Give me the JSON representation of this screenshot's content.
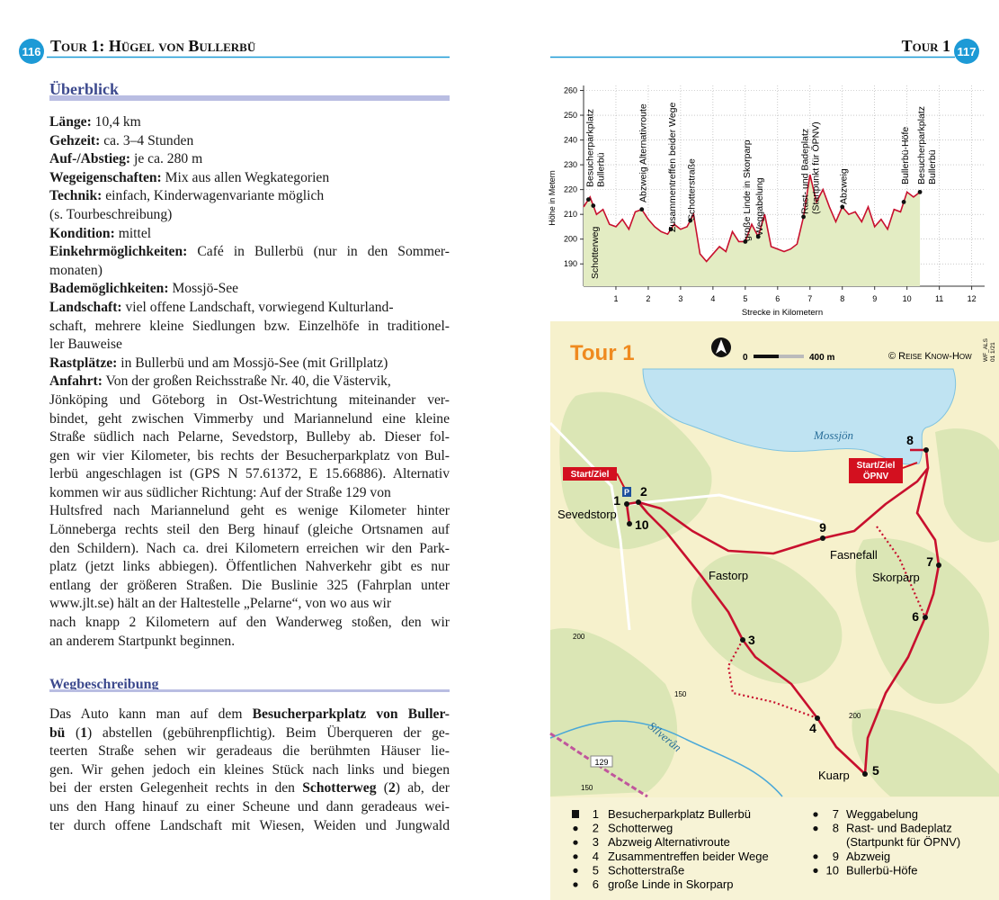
{
  "left": {
    "page_number": "116",
    "header": "Tour 1: Hügel von Bullerbü",
    "overview": {
      "heading": "Überblick",
      "lines": [
        [
          {
            "text": "Länge:",
            "bold": true
          },
          {
            "text": " 10,4 km"
          }
        ],
        [
          {
            "text": "Gehzeit:",
            "bold": true
          },
          {
            "text": " ca. 3–4 Stunden"
          }
        ],
        [
          {
            "text": "Auf-/Abstieg:",
            "bold": true
          },
          {
            "text": " je ca. 280 m"
          }
        ],
        [
          {
            "text": "Wegeigenschaften:",
            "bold": true
          },
          {
            "text": " Mix aus allen Wegkategorien"
          }
        ],
        [
          {
            "text": "Technik:",
            "bold": true
          },
          {
            "text": " einfach, Kinderwagenvariante möglich"
          }
        ],
        [
          {
            "text": "(s. Tourbeschreibung)"
          }
        ],
        [
          {
            "text": "Kondition:",
            "bold": true
          },
          {
            "text": " mittel"
          }
        ],
        [
          {
            "text": "Einkehrmöglichkeiten:",
            "bold": true
          },
          {
            "text": " Café in Bullerbü (nur in den Sommer-"
          }
        ],
        [
          {
            "text": "monaten)"
          }
        ],
        [
          {
            "text": "Bademöglichkeiten:",
            "bold": true
          },
          {
            "text": " Mossjö-See"
          }
        ],
        [
          {
            "text": "Landschaft:",
            "bold": true
          },
          {
            "text": " viel offene Landschaft, vorwiegend Kulturland-"
          }
        ],
        [
          {
            "text": "schaft, mehrere kleine Siedlungen bzw. Einzelhöfe in traditionel-"
          }
        ],
        [
          {
            "text": "ler Bauweise"
          }
        ],
        [
          {
            "text": "Rastplätze:",
            "bold": true
          },
          {
            "text": " in Bullerbü und am Mossjö-See (mit Grillplatz)"
          }
        ],
        [
          {
            "text": "Anfahrt:",
            "bold": true
          },
          {
            "text": " Von der großen Reichsstraße Nr. 40, die Västervik,"
          }
        ],
        [
          {
            "text": "Jönköping und Göteborg in Ost-Westrichtung miteinander ver-"
          }
        ],
        [
          {
            "text": "bindet, geht zwischen Vimmerby und Mariannelund eine kleine"
          }
        ],
        [
          {
            "text": "Straße südlich nach Pelarne, Sevedstorp, Bulleby ab. Dieser fol-"
          }
        ],
        [
          {
            "text": "gen wir vier Kilometer, bis rechts der Besucherparkplatz von Bul-"
          }
        ],
        [
          {
            "text": "lerbü angeschlagen ist (GPS N 57.61372, E 15.66886). Alternativ"
          }
        ],
        [
          {
            "text": "kommen wir aus südlicher Richtung: Auf der Straße 129 von"
          }
        ],
        [
          {
            "text": "Hultsfred nach Mariannelund geht es wenige Kilometer hinter"
          }
        ],
        [
          {
            "text": "Lönneberga rechts steil den Berg hinauf (gleiche Ortsnamen auf"
          }
        ],
        [
          {
            "text": "den Schildern). Nach ca. drei Kilometern erreichen wir den Park-"
          }
        ],
        [
          {
            "text": "platz (jetzt links abbiegen). Öffentlichen Nahverkehr gibt es nur"
          }
        ],
        [
          {
            "text": "entlang der größeren Straßen. Die Buslinie 325 (Fahrplan unter"
          }
        ],
        [
          {
            "text": "www.jlt.se) hält an der Haltestelle „Pelarne“, von wo aus wir"
          }
        ],
        [
          {
            "text": "nach knapp 2 Kilometern auf den Wanderweg stoßen, den wir"
          }
        ],
        [
          {
            "text": "an anderem Startpunkt beginnen."
          }
        ]
      ]
    },
    "route": {
      "heading": "Wegbeschreibung",
      "lines": [
        [
          {
            "text": "Das Auto kann man auf dem "
          },
          {
            "text": "Besucherparkplatz von Buller-",
            "bold": true
          }
        ],
        [
          {
            "text": "bü",
            "bold": true
          },
          {
            "text": " ("
          },
          {
            "text": "1",
            "bold": true
          },
          {
            "text": ") abstellen (gebührenpflichtig). Beim Überqueren der ge-"
          }
        ],
        [
          {
            "text": "teerten Straße sehen wir geradeaus die berühmten Häuser lie-"
          }
        ],
        [
          {
            "text": "gen. Wir gehen jedoch ein kleines Stück nach links und biegen"
          }
        ],
        [
          {
            "text": "bei der ersten Gelegenheit rechts in den "
          },
          {
            "text": "Schotterweg",
            "bold": true
          },
          {
            "text": " ("
          },
          {
            "text": "2",
            "bold": true
          },
          {
            "text": ") ab, der"
          }
        ],
        [
          {
            "text": "uns den Hang hinauf zu einer Scheune und dann geradeaus wei-"
          }
        ],
        [
          {
            "text": "ter durch offene Landschaft mit Wiesen, Weiden und Jungwald"
          }
        ]
      ]
    }
  },
  "right": {
    "header": "Tour 1",
    "page_number": "117"
  },
  "chart_data": {
    "type": "area",
    "ylabel": "Höhe in Metern",
    "xlabel": "Strecke in Kilometern",
    "color": "#c8102e",
    "fill_color": "#e3ecc3",
    "grid": true,
    "xlim": [
      0,
      12.4
    ],
    "ylim": [
      181,
      262
    ],
    "xticks": [
      1,
      2,
      3,
      4,
      5,
      6,
      7,
      8,
      9,
      10,
      11,
      12
    ],
    "yticks": [
      190,
      200,
      210,
      220,
      230,
      240,
      250,
      260
    ],
    "x": [
      0,
      0.2,
      0.4,
      0.6,
      0.8,
      1,
      1.2,
      1.4,
      1.6,
      1.8,
      2,
      2.2,
      2.4,
      2.6,
      2.8,
      3,
      3.2,
      3.4,
      3.6,
      3.8,
      4,
      4.2,
      4.4,
      4.6,
      4.8,
      5,
      5.2,
      5.4,
      5.6,
      5.8,
      6,
      6.2,
      6.4,
      6.6,
      6.8,
      7,
      7.2,
      7.4,
      7.6,
      7.8,
      8,
      8.2,
      8.4,
      8.6,
      8.8,
      9,
      9.2,
      9.4,
      9.6,
      9.8,
      10,
      10.2,
      10.4
    ],
    "values": [
      213,
      217,
      210,
      212,
      206,
      205,
      208,
      204,
      211,
      212,
      208,
      205,
      203,
      202,
      206,
      204,
      205,
      210,
      194,
      191,
      194,
      197,
      195,
      203,
      199,
      199,
      206,
      201,
      210,
      197,
      196,
      195,
      196,
      198,
      209,
      226,
      215,
      220,
      213,
      207,
      213,
      210,
      211,
      207,
      213,
      205,
      208,
      204,
      212,
      211,
      219,
      217,
      219
    ],
    "annotations": [
      {
        "lines": [
          "Besucherparkplatz",
          "Bullerbü"
        ],
        "x": 0.15
      },
      {
        "lines": [
          "Schotterweg"
        ],
        "x": 0.3
      },
      {
        "lines": [
          "Abzweig Alternativroute"
        ],
        "x": 1.8
      },
      {
        "lines": [
          "Zusammentreffen beider Wege"
        ],
        "x": 2.7
      },
      {
        "lines": [
          "Schotterstraße"
        ],
        "x": 3.3
      },
      {
        "lines": [
          "große Linde in Skorparp"
        ],
        "x": 5.0
      },
      {
        "lines": [
          "Weggabelung"
        ],
        "x": 5.4
      },
      {
        "lines": [
          "Rast- und Badeplatz",
          "(Startpunkt für ÖPNV)"
        ],
        "x": 6.8
      },
      {
        "lines": [
          "Abzweig"
        ],
        "x": 8.0
      },
      {
        "lines": [
          "Bullerbü-Höfe"
        ],
        "x": 9.9
      },
      {
        "lines": [
          "Besucherparkplatz",
          "Bullerbü"
        ],
        "x": 10.4
      }
    ]
  },
  "map": {
    "title": "Tour 1",
    "scale_start": "0",
    "scale_end": "400 m",
    "copyright": "© Reise Know-How",
    "code": [
      "WF_ALS",
      "01 1/21"
    ],
    "start_badge": "Start/Ziel",
    "opnv_badge": [
      "Start/Ziel",
      "ÖPNV"
    ],
    "lake": "Mossjön",
    "river": "Silverån",
    "road": "129",
    "places": {
      "sevedstorp": "Sevedstorp",
      "fasnefall": "Fasnefall",
      "fastorp": "Fastorp",
      "skorparp": "Skorparp",
      "kuarp": "Kuarp"
    },
    "contours": [
      "200",
      "150",
      "200",
      "150"
    ],
    "markers": [
      "1",
      "2",
      "3",
      "4",
      "5",
      "6",
      "7",
      "8",
      "9",
      "10"
    ],
    "legend": [
      {
        "num": "1",
        "lines": [
          "Besucherparkplatz Bullerbü"
        ]
      },
      {
        "num": "2",
        "lines": [
          "Schotterweg"
        ]
      },
      {
        "num": "3",
        "lines": [
          "Abzweig Alternativroute"
        ]
      },
      {
        "num": "4",
        "lines": [
          "Zusammentreffen beider Wege"
        ]
      },
      {
        "num": "5",
        "lines": [
          "Schotterstraße"
        ]
      },
      {
        "num": "6",
        "lines": [
          "große Linde in Skorparp"
        ]
      },
      {
        "num": "7",
        "lines": [
          "Weggabelung"
        ]
      },
      {
        "num": "8",
        "lines": [
          "Rast- und Badeplatz",
          "(Startpunkt für ÖPNV)"
        ]
      },
      {
        "num": "9",
        "lines": [
          "Abzweig"
        ]
      },
      {
        "num": "10",
        "lines": [
          "Bullerbü-Höfe"
        ]
      }
    ]
  }
}
